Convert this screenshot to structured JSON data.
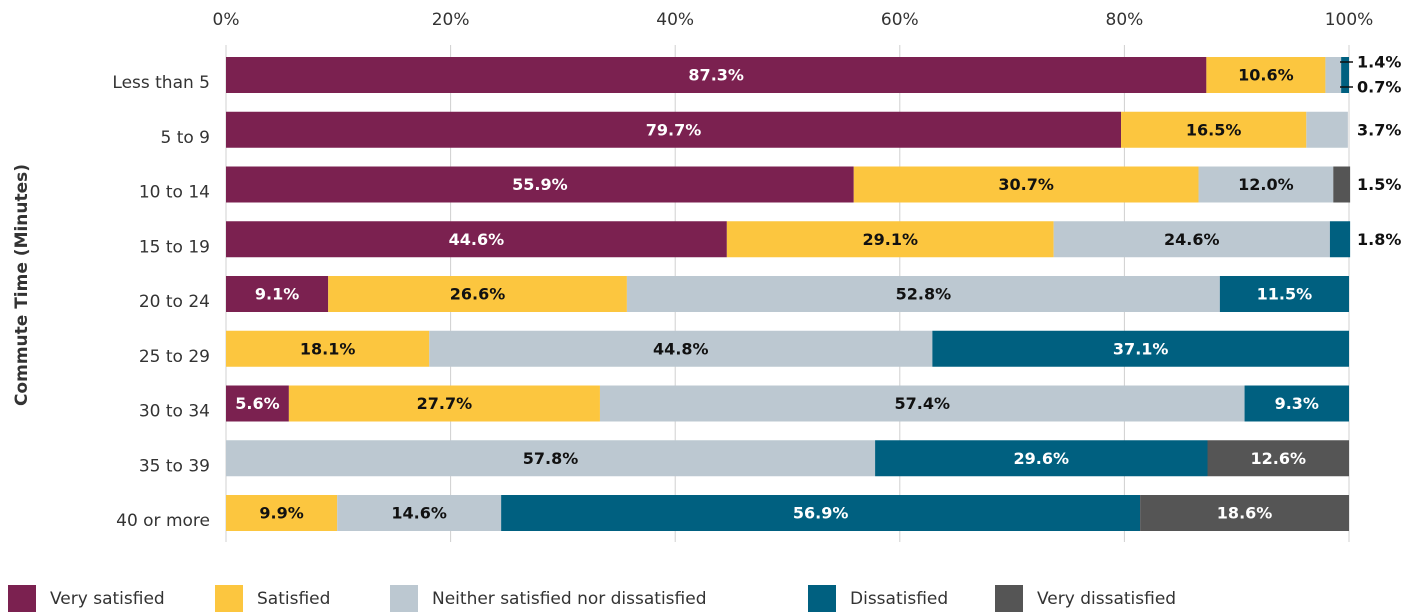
{
  "chart_data": {
    "type": "stacked-bar-horizontal",
    "y_label": "Commute Time (Minutes)",
    "categories": [
      "Less than 5",
      "5 to 9",
      "10 to 14",
      "15 to 19",
      "20 to 24",
      "25 to 29",
      "30 to 34",
      "35 to 39",
      "40 or more"
    ],
    "xlim": [
      0,
      100
    ],
    "xticks": [
      {
        "value": 0,
        "label": "0%"
      },
      {
        "value": 20,
        "label": "20%"
      },
      {
        "value": 40,
        "label": "40%"
      },
      {
        "value": 60,
        "label": "60%"
      },
      {
        "value": 80,
        "label": "80%"
      },
      {
        "value": 100,
        "label": "100%"
      }
    ],
    "grid": true,
    "legend": "bottom",
    "series": [
      {
        "name": "Very satisfied",
        "color": "#7b2150",
        "values": [
          87.3,
          79.7,
          55.9,
          44.6,
          9.1,
          null,
          5.6,
          null,
          null
        ],
        "value_labels": [
          "87.3%",
          "79.7%",
          "55.9%",
          "44.6%",
          "9.1%",
          null,
          "5.6%",
          null,
          null
        ]
      },
      {
        "name": "Satisfied",
        "color": "#fcc63f",
        "values": [
          10.6,
          16.5,
          30.7,
          29.1,
          26.6,
          18.1,
          27.7,
          null,
          9.9
        ],
        "value_labels": [
          "10.6%",
          "16.5%",
          "30.7%",
          "29.1%",
          "26.6%",
          "18.1%",
          "27.7%",
          null,
          "9.9%"
        ]
      },
      {
        "name": "Neither satisfied nor dissatisfied",
        "color": "#bcc8d1",
        "values": [
          1.4,
          3.7,
          12.0,
          24.6,
          52.8,
          44.8,
          57.4,
          57.8,
          14.6
        ],
        "value_labels": [
          "1.4%",
          "3.7%",
          "12.0%",
          "24.6%",
          "52.8%",
          "44.8%",
          "57.4%",
          "57.8%",
          "14.6%"
        ]
      },
      {
        "name": "Dissatisfied",
        "color": "#006080",
        "values": [
          0.7,
          null,
          null,
          1.8,
          11.5,
          37.1,
          9.3,
          29.6,
          56.9
        ],
        "value_labels": [
          "0.7%",
          null,
          null,
          "1.8%",
          "11.5%",
          "37.1%",
          "9.3%",
          "29.6%",
          "56.9%"
        ]
      },
      {
        "name": "Very dissatisfied",
        "color": "#555555",
        "values": [
          null,
          null,
          1.5,
          null,
          null,
          null,
          null,
          12.6,
          18.6
        ],
        "value_labels": [
          null,
          null,
          "1.5%",
          null,
          null,
          null,
          null,
          "12.6%",
          "18.6%"
        ]
      }
    ]
  }
}
